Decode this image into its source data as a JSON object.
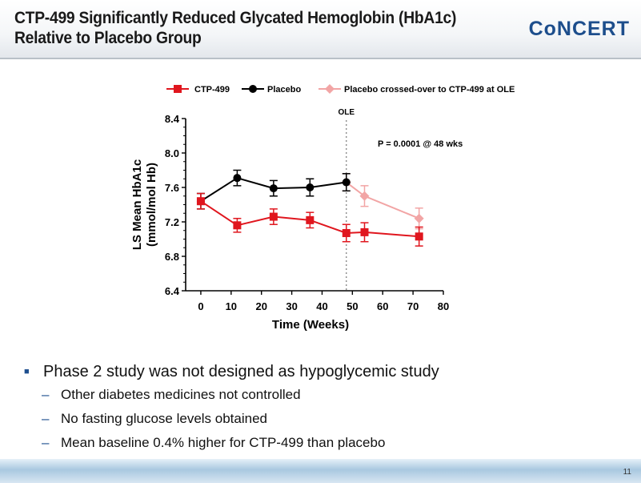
{
  "slide": {
    "title_line1": "CTP-499 Significantly Reduced Glycated Hemoglobin (HbA1c)",
    "title_line2": "Relative to Placebo Group",
    "logo_text": "CoNCERT",
    "page_number": "11"
  },
  "bullets": {
    "main": "Phase 2 study was not designed as hypoglycemic study",
    "subs": [
      "Other diabetes medicines not controlled",
      "No fasting glucose levels obtained",
      "Mean baseline 0.4% higher for CTP-499 than placebo"
    ]
  },
  "chart_data": {
    "type": "line",
    "xlabel": "Time (Weeks)",
    "ylabel_line1": "LS Mean HbA1c",
    "ylabel_line2": "(mmol/mol Hb)",
    "xlim": [
      -5,
      80
    ],
    "ylim": [
      6.4,
      8.4
    ],
    "x_ticks": [
      0,
      10,
      20,
      30,
      40,
      50,
      60,
      70,
      80
    ],
    "y_ticks": [
      "6.4",
      "6.8",
      "7.2",
      "7.6",
      "8.0",
      "8.4"
    ],
    "legend_placement": "top",
    "annotation": "P = 0.0001 @ 48 wks",
    "ole_label": "OLE",
    "ole_x": 48,
    "series": [
      {
        "name": "CTP-499",
        "color": "#e0161e",
        "marker": "square",
        "points": [
          {
            "x": 0,
            "y": 7.44,
            "err": 0.09
          },
          {
            "x": 12,
            "y": 7.16,
            "err": 0.08
          },
          {
            "x": 24,
            "y": 7.26,
            "err": 0.09
          },
          {
            "x": 36,
            "y": 7.22,
            "err": 0.09
          },
          {
            "x": 48,
            "y": 7.07,
            "err": 0.1
          },
          {
            "x": 54,
            "y": 7.08,
            "err": 0.11
          },
          {
            "x": 72,
            "y": 7.03,
            "err": 0.11
          }
        ]
      },
      {
        "name": "Placebo",
        "color": "#000000",
        "marker": "circle",
        "points": [
          {
            "x": 0,
            "y": 7.44,
            "err": 0.09
          },
          {
            "x": 12,
            "y": 7.71,
            "err": 0.09
          },
          {
            "x": 24,
            "y": 7.59,
            "err": 0.09
          },
          {
            "x": 36,
            "y": 7.6,
            "err": 0.1
          },
          {
            "x": 48,
            "y": 7.66,
            "err": 0.1
          }
        ]
      },
      {
        "name": "Placebo crossed-over to CTP-499 at OLE",
        "color": "#f2a5a5",
        "marker": "diamond",
        "points": [
          {
            "x": 48,
            "y": 7.66,
            "err": 0.1
          },
          {
            "x": 54,
            "y": 7.5,
            "err": 0.12
          },
          {
            "x": 72,
            "y": 7.24,
            "err": 0.12
          }
        ]
      }
    ]
  }
}
